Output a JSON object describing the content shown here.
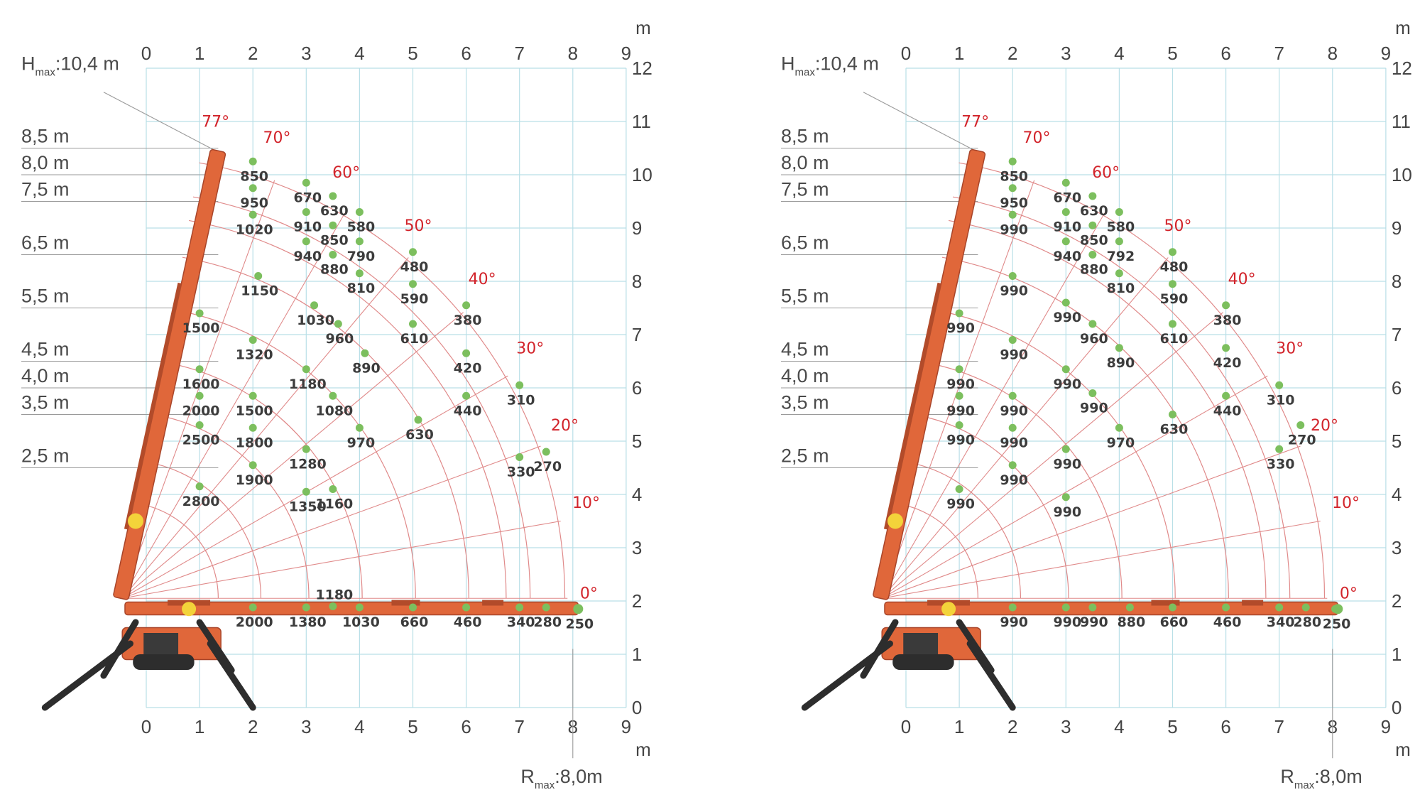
{
  "units": {
    "top": "m",
    "bottom": "m"
  },
  "x_ticks": [
    "0",
    "1",
    "2",
    "3",
    "4",
    "5",
    "6",
    "7",
    "8",
    "9"
  ],
  "y_ticks": [
    "0",
    "1",
    "2",
    "3",
    "4",
    "5",
    "6",
    "7",
    "8",
    "9",
    "10",
    "11",
    "12"
  ],
  "hmax": {
    "letter": "H",
    "sub": "max",
    "value": ":10,4 m"
  },
  "rmax": {
    "letter": "R",
    "sub": "max",
    "value": ":8,0m"
  },
  "height_labels": [
    {
      "text": "8,5 m",
      "y": 10.5
    },
    {
      "text": "8,0 m",
      "y": 10.0
    },
    {
      "text": "7,5 m",
      "y": 9.5
    },
    {
      "text": "6,5 m",
      "y": 8.5
    },
    {
      "text": "5,5 m",
      "y": 7.5
    },
    {
      "text": "4,5 m",
      "y": 6.5
    },
    {
      "text": "4,0 m",
      "y": 6.0
    },
    {
      "text": "3,5 m",
      "y": 5.5
    },
    {
      "text": "2,5 m",
      "y": 4.5
    }
  ],
  "angle_labels": [
    {
      "text": "77°",
      "x": 1.3,
      "y": 10.9
    },
    {
      "text": "70°",
      "x": 2.45,
      "y": 10.6
    },
    {
      "text": "60°",
      "x": 3.75,
      "y": 9.95
    },
    {
      "text": "50°",
      "x": 5.1,
      "y": 8.95
    },
    {
      "text": "40°",
      "x": 6.3,
      "y": 7.95
    },
    {
      "text": "30°",
      "x": 7.2,
      "y": 6.65
    },
    {
      "text": "20°",
      "x": 7.85,
      "y": 5.2
    },
    {
      "text": "10°",
      "x": 8.25,
      "y": 3.75
    },
    {
      "text": "0°",
      "x": 8.3,
      "y": 2.05
    }
  ],
  "arc_radii": [
    1.8,
    2.6,
    3.5,
    4.5,
    5.5,
    6.5,
    7.2,
    7.65,
    8.3
  ],
  "ray_angles": [
    0,
    10,
    20,
    30,
    40,
    50,
    60,
    70,
    77
  ],
  "charts": [
    {
      "name": "left",
      "points": [
        {
          "x": 2.0,
          "y": 10.25,
          "label": "850"
        },
        {
          "x": 2.0,
          "y": 9.75,
          "label": "950"
        },
        {
          "x": 2.0,
          "y": 9.25,
          "label": "1020"
        },
        {
          "x": 3.0,
          "y": 9.85,
          "label": "670"
        },
        {
          "x": 3.5,
          "y": 9.6,
          "label": "630"
        },
        {
          "x": 3.0,
          "y": 9.3,
          "label": "910"
        },
        {
          "x": 4.0,
          "y": 9.3,
          "label": "580"
        },
        {
          "x": 3.5,
          "y": 9.05,
          "label": "850"
        },
        {
          "x": 3.0,
          "y": 8.75,
          "label": "940"
        },
        {
          "x": 4.0,
          "y": 8.75,
          "label": "790"
        },
        {
          "x": 3.5,
          "y": 8.5,
          "label": "880"
        },
        {
          "x": 5.0,
          "y": 8.55,
          "label": "480"
        },
        {
          "x": 4.0,
          "y": 8.15,
          "label": "810"
        },
        {
          "x": 2.1,
          "y": 8.1,
          "label": "1150"
        },
        {
          "x": 5.0,
          "y": 7.95,
          "label": "590"
        },
        {
          "x": 6.0,
          "y": 7.55,
          "label": "380"
        },
        {
          "x": 1.0,
          "y": 7.4,
          "label": "1500"
        },
        {
          "x": 3.15,
          "y": 7.55,
          "label": "1030"
        },
        {
          "x": 3.6,
          "y": 7.2,
          "label": "960"
        },
        {
          "x": 5.0,
          "y": 7.2,
          "label": "610"
        },
        {
          "x": 2.0,
          "y": 6.9,
          "label": "1320"
        },
        {
          "x": 4.1,
          "y": 6.65,
          "label": "890"
        },
        {
          "x": 6.0,
          "y": 6.65,
          "label": "420"
        },
        {
          "x": 7.0,
          "y": 6.05,
          "label": "310"
        },
        {
          "x": 1.0,
          "y": 6.35,
          "label": "1600"
        },
        {
          "x": 3.0,
          "y": 6.35,
          "label": "1180"
        },
        {
          "x": 1.0,
          "y": 5.85,
          "label": "2000"
        },
        {
          "x": 2.0,
          "y": 5.85,
          "label": "1500"
        },
        {
          "x": 3.5,
          "y": 5.85,
          "label": "1080"
        },
        {
          "x": 6.0,
          "y": 5.85,
          "label": "440"
        },
        {
          "x": 5.1,
          "y": 5.4,
          "label": "630"
        },
        {
          "x": 2.0,
          "y": 5.25,
          "label": "1800"
        },
        {
          "x": 4.0,
          "y": 5.25,
          "label": "970"
        },
        {
          "x": 1.0,
          "y": 5.3,
          "label": "2500"
        },
        {
          "x": 3.0,
          "y": 4.85,
          "label": "1280"
        },
        {
          "x": 7.5,
          "y": 4.8,
          "label": "270"
        },
        {
          "x": 7.0,
          "y": 4.7,
          "label": "330"
        },
        {
          "x": 2.0,
          "y": 4.55,
          "label": "1900"
        },
        {
          "x": 3.5,
          "y": 4.1,
          "label": "1160"
        },
        {
          "x": 1.0,
          "y": 4.15,
          "label": "2800"
        },
        {
          "x": 3.0,
          "y": 4.05,
          "label": "1350"
        },
        {
          "x": 3.5,
          "y": 1.9,
          "label": "1180",
          "above": true
        },
        {
          "x": 2.0,
          "y": 1.88,
          "label": "2000"
        },
        {
          "x": 3.0,
          "y": 1.88,
          "label": "1380"
        },
        {
          "x": 4.0,
          "y": 1.88,
          "label": "1030"
        },
        {
          "x": 5.0,
          "y": 1.88,
          "label": "660"
        },
        {
          "x": 6.0,
          "y": 1.88,
          "label": "460"
        },
        {
          "x": 7.0,
          "y": 1.88,
          "label": "340"
        },
        {
          "x": 7.5,
          "y": 1.88,
          "label": "280"
        },
        {
          "x": 8.1,
          "y": 1.85,
          "label": "250"
        }
      ]
    },
    {
      "name": "right",
      "points": [
        {
          "x": 2.0,
          "y": 10.25,
          "label": "850"
        },
        {
          "x": 2.0,
          "y": 9.75,
          "label": "950"
        },
        {
          "x": 2.0,
          "y": 9.25,
          "label": "990"
        },
        {
          "x": 3.0,
          "y": 9.85,
          "label": "670"
        },
        {
          "x": 3.5,
          "y": 9.6,
          "label": "630"
        },
        {
          "x": 3.0,
          "y": 9.3,
          "label": "910"
        },
        {
          "x": 4.0,
          "y": 9.3,
          "label": "580"
        },
        {
          "x": 3.5,
          "y": 9.05,
          "label": "850"
        },
        {
          "x": 3.0,
          "y": 8.75,
          "label": "940"
        },
        {
          "x": 4.0,
          "y": 8.75,
          "label": "792"
        },
        {
          "x": 3.5,
          "y": 8.5,
          "label": "880"
        },
        {
          "x": 5.0,
          "y": 8.55,
          "label": "480"
        },
        {
          "x": 4.0,
          "y": 8.15,
          "label": "810"
        },
        {
          "x": 2.0,
          "y": 8.1,
          "label": "990"
        },
        {
          "x": 5.0,
          "y": 7.95,
          "label": "590"
        },
        {
          "x": 6.0,
          "y": 7.55,
          "label": "380"
        },
        {
          "x": 1.0,
          "y": 7.4,
          "label": "990"
        },
        {
          "x": 3.0,
          "y": 7.6,
          "label": "990"
        },
        {
          "x": 3.5,
          "y": 7.2,
          "label": "960"
        },
        {
          "x": 5.0,
          "y": 7.2,
          "label": "610"
        },
        {
          "x": 2.0,
          "y": 6.9,
          "label": "990"
        },
        {
          "x": 4.0,
          "y": 6.75,
          "label": "890"
        },
        {
          "x": 6.0,
          "y": 6.75,
          "label": "420"
        },
        {
          "x": 7.0,
          "y": 6.05,
          "label": "310"
        },
        {
          "x": 1.0,
          "y": 6.35,
          "label": "990"
        },
        {
          "x": 3.0,
          "y": 6.35,
          "label": "990"
        },
        {
          "x": 1.0,
          "y": 5.85,
          "label": "990"
        },
        {
          "x": 2.0,
          "y": 5.85,
          "label": "990"
        },
        {
          "x": 3.5,
          "y": 5.9,
          "label": "990"
        },
        {
          "x": 6.0,
          "y": 5.85,
          "label": "440"
        },
        {
          "x": 5.0,
          "y": 5.5,
          "label": "630"
        },
        {
          "x": 2.0,
          "y": 5.25,
          "label": "990"
        },
        {
          "x": 4.0,
          "y": 5.25,
          "label": "970"
        },
        {
          "x": 1.0,
          "y": 5.3,
          "label": "990"
        },
        {
          "x": 3.0,
          "y": 4.85,
          "label": "990"
        },
        {
          "x": 7.4,
          "y": 5.3,
          "label": "270"
        },
        {
          "x": 7.0,
          "y": 4.85,
          "label": "330"
        },
        {
          "x": 2.0,
          "y": 4.55,
          "label": "990"
        },
        {
          "x": 1.0,
          "y": 4.1,
          "label": "990"
        },
        {
          "x": 3.0,
          "y": 3.95,
          "label": "990"
        },
        {
          "x": 2.0,
          "y": 1.88,
          "label": "990"
        },
        {
          "x": 3.0,
          "y": 1.88,
          "label": "990"
        },
        {
          "x": 3.5,
          "y": 1.88,
          "label": "990"
        },
        {
          "x": 4.2,
          "y": 1.88,
          "label": "880"
        },
        {
          "x": 5.0,
          "y": 1.88,
          "label": "660"
        },
        {
          "x": 6.0,
          "y": 1.88,
          "label": "460"
        },
        {
          "x": 7.0,
          "y": 1.88,
          "label": "340"
        },
        {
          "x": 7.5,
          "y": 1.88,
          "label": "280"
        },
        {
          "x": 8.05,
          "y": 1.85,
          "label": "250"
        }
      ]
    }
  ]
}
